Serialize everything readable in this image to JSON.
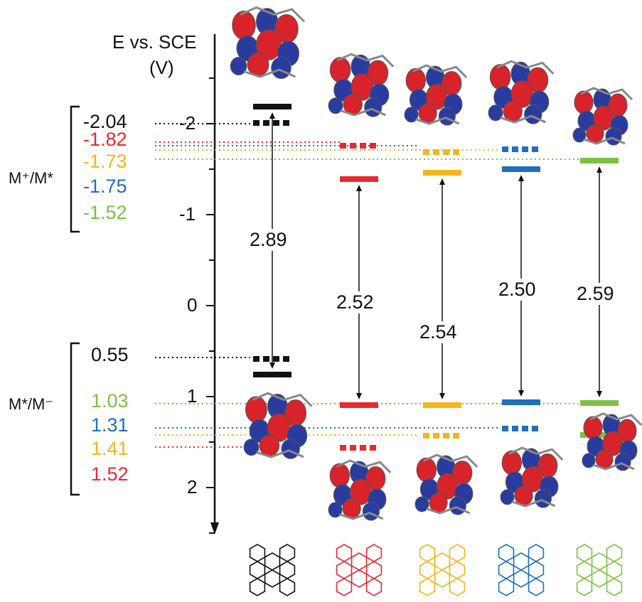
{
  "axis": {
    "title_line1": "E vs. SCE",
    "title_line2": "(V)",
    "ticks": [
      "-2",
      "-1",
      "0",
      "1",
      "2"
    ]
  },
  "groups": {
    "oxidation": {
      "label": "M⁺/M*"
    },
    "reduction": {
      "label": "M*/M⁻"
    }
  },
  "potentials": {
    "oxidation": [
      {
        "text": "-2.04",
        "color": "#111111"
      },
      {
        "text": "-1.82",
        "color": "#e8292f"
      },
      {
        "text": "-1.73",
        "color": "#f2b51c"
      },
      {
        "text": "-1.75",
        "color": "#1f6fbd"
      },
      {
        "text": "-1.52",
        "color": "#7cc242"
      }
    ],
    "reduction": [
      {
        "text": "0.55",
        "color": "#111111"
      },
      {
        "text": "1.03",
        "color": "#7cc242"
      },
      {
        "text": "1.31",
        "color": "#1f6fbd"
      },
      {
        "text": "1.41",
        "color": "#f2b51c"
      },
      {
        "text": "1.52",
        "color": "#e8292f"
      }
    ]
  },
  "chart_data": {
    "type": "energy-level-diagram",
    "y_axis": {
      "label": "E vs. SCE (V)",
      "range": [
        -2.6,
        2.5
      ],
      "inverted": true,
      "ticks": [
        -2,
        -1,
        0,
        1,
        2
      ]
    },
    "compounds": [
      {
        "color": "#111111",
        "excited_oxidation": -2.04,
        "excited_reduction": 0.55,
        "E00": 2.89
      },
      {
        "color": "#e8292f",
        "excited_oxidation": -1.82,
        "excited_reduction": 1.52,
        "E00": 2.52
      },
      {
        "color": "#f2b51c",
        "excited_oxidation": -1.73,
        "excited_reduction": 1.41,
        "E00": 2.54
      },
      {
        "color": "#1f6fbd",
        "excited_oxidation": -1.75,
        "excited_reduction": 1.31,
        "E00": 2.5
      },
      {
        "color": "#7cc242",
        "excited_oxidation": -1.52,
        "excited_reduction": 1.03,
        "E00": 2.59
      }
    ],
    "gap_labels": [
      "2.89",
      "2.52",
      "2.54",
      "2.50",
      "2.59"
    ],
    "orbital_colors": {
      "positive": "#d8232a",
      "negative": "#2a3ba0"
    }
  }
}
